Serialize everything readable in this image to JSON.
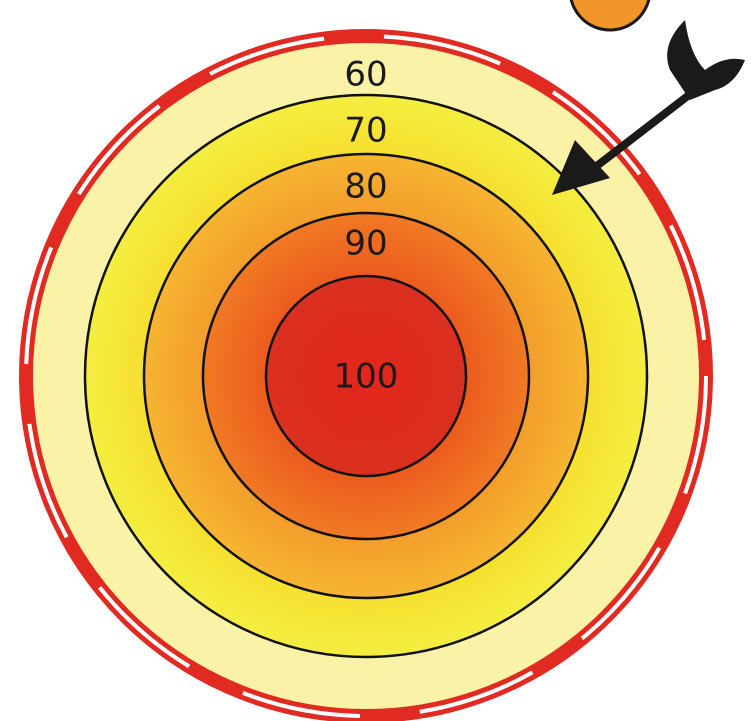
{
  "target": {
    "rings": [
      {
        "label": "60"
      },
      {
        "label": "70"
      },
      {
        "label": "80"
      },
      {
        "label": "90"
      },
      {
        "label": "100"
      }
    ]
  }
}
